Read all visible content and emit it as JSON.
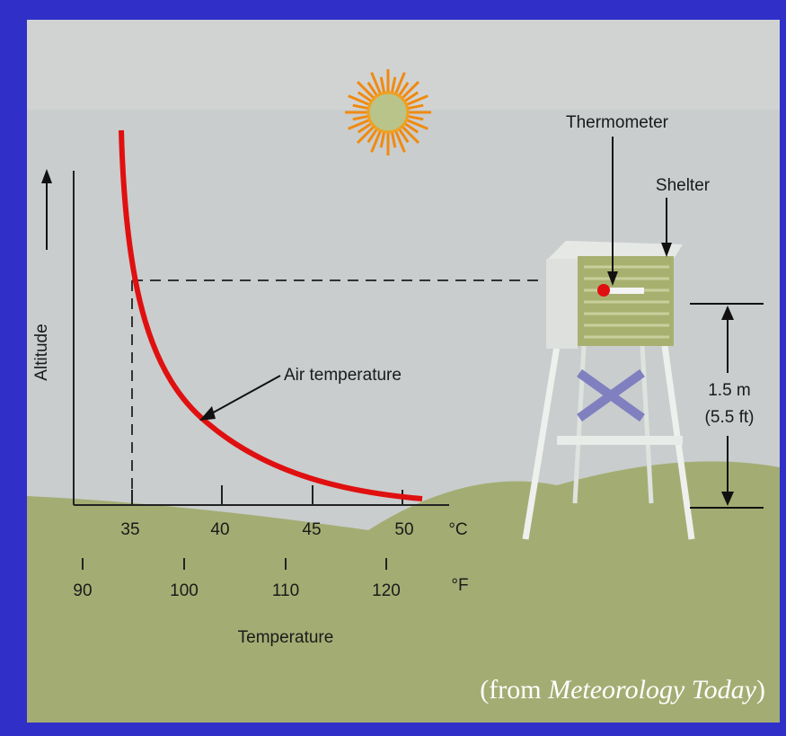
{
  "figure": {
    "y_axis_label": "Altitude",
    "x_axis_label": "Temperature",
    "celsius": {
      "unit": "°C",
      "ticks": [
        35,
        40,
        45,
        50
      ]
    },
    "fahrenheit": {
      "unit": "°F",
      "ticks": [
        90,
        100,
        110,
        120
      ]
    },
    "annotations": {
      "curve": "Air temperature",
      "thermometer": "Thermometer",
      "shelter": "Shelter",
      "height_m": "1.5 m",
      "height_ft": "(5.5 ft)"
    },
    "credit": {
      "prefix": "(from ",
      "title": "Meteorology Today",
      "suffix": ")"
    }
  }
}
